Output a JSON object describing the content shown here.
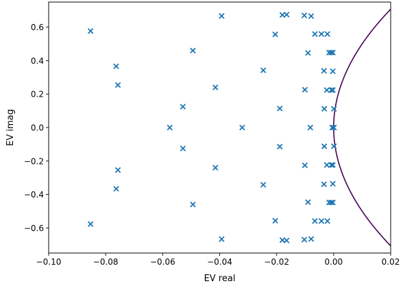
{
  "chart_data": {
    "type": "scatter",
    "xlabel": "EV real",
    "ylabel": "EV imag",
    "xlim": [
      -0.1,
      0.02
    ],
    "ylim": [
      -0.75,
      0.75
    ],
    "x_ticks": [
      -0.1,
      -0.08,
      -0.06,
      -0.04,
      -0.02,
      0.0,
      0.02
    ],
    "x_tick_labels": [
      "−0.10",
      "−0.08",
      "−0.06",
      "−0.04",
      "−0.02",
      "0.00",
      "0.02"
    ],
    "y_ticks": [
      -0.6,
      -0.4,
      -0.2,
      0.0,
      0.2,
      0.4,
      0.6
    ],
    "y_tick_labels": [
      "−0.6",
      "−0.4",
      "−0.2",
      "0.0",
      "0.2",
      "0.4",
      "0.6"
    ],
    "grid": false,
    "marker": "x",
    "colors": {
      "points": "#1f77b4",
      "curve": "#440154"
    },
    "points": [
      [
        -0.0853,
        0.577
      ],
      [
        -0.0853,
        -0.577
      ],
      [
        -0.0763,
        0.366
      ],
      [
        -0.0763,
        -0.366
      ],
      [
        -0.0757,
        0.254
      ],
      [
        -0.0757,
        -0.254
      ],
      [
        -0.0575,
        0.0
      ],
      [
        -0.0529,
        0.125
      ],
      [
        -0.0529,
        -0.125
      ],
      [
        -0.0494,
        0.46
      ],
      [
        -0.0494,
        -0.46
      ],
      [
        -0.0415,
        0.24
      ],
      [
        -0.0415,
        -0.24
      ],
      [
        -0.0393,
        0.667
      ],
      [
        -0.0393,
        -0.667
      ],
      [
        -0.0321,
        0.0
      ],
      [
        -0.0247,
        0.342
      ],
      [
        -0.0247,
        -0.342
      ],
      [
        -0.0205,
        0.557
      ],
      [
        -0.0205,
        -0.557
      ],
      [
        -0.0189,
        0.114
      ],
      [
        -0.0189,
        -0.114
      ],
      [
        -0.018,
        0.673
      ],
      [
        -0.018,
        -0.673
      ],
      [
        -0.0165,
        0.675
      ],
      [
        -0.0165,
        -0.675
      ],
      [
        -0.0103,
        0.67
      ],
      [
        -0.0103,
        -0.67
      ],
      [
        -0.0101,
        0.226
      ],
      [
        -0.0101,
        -0.226
      ],
      [
        -0.009,
        0.446
      ],
      [
        -0.009,
        -0.446
      ],
      [
        -0.0082,
        0.0
      ],
      [
        -0.0079,
        0.666
      ],
      [
        -0.0079,
        -0.666
      ],
      [
        -0.0066,
        0.559
      ],
      [
        -0.0066,
        -0.559
      ],
      [
        -0.0043,
        0.559
      ],
      [
        -0.0043,
        -0.559
      ],
      [
        -0.0034,
        0.339
      ],
      [
        -0.0034,
        -0.339
      ],
      [
        -0.0033,
        0.112
      ],
      [
        -0.0033,
        -0.112
      ],
      [
        -0.0024,
        0.224
      ],
      [
        -0.0024,
        -0.224
      ],
      [
        -0.0022,
        0.559
      ],
      [
        -0.0022,
        -0.559
      ],
      [
        -0.0016,
        0.448
      ],
      [
        -0.0016,
        -0.448
      ],
      [
        -0.0009,
        0.448
      ],
      [
        -0.0009,
        -0.448
      ],
      [
        -0.0003,
        0.448
      ],
      [
        -0.0003,
        -0.448
      ],
      [
        -0.0008,
        0.224
      ],
      [
        -0.0008,
        -0.224
      ],
      [
        -0.0003,
        0.224
      ],
      [
        -0.0003,
        -0.224
      ],
      [
        -0.0003,
        0.336
      ],
      [
        -0.0003,
        -0.336
      ],
      [
        0.0001,
        0.112
      ],
      [
        0.0001,
        -0.112
      ],
      [
        -0.0005,
        0.0
      ],
      [
        0.0001,
        0.0
      ]
    ],
    "curve_equation": "x = 0.04 * y^2"
  }
}
